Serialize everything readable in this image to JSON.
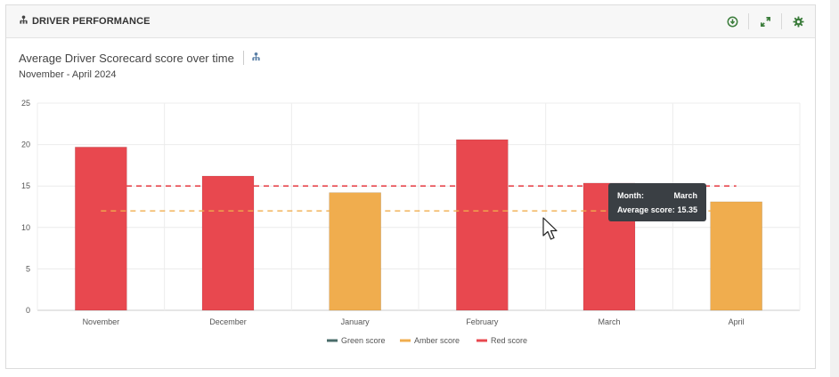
{
  "header": {
    "title": "DRIVER PERFORMANCE"
  },
  "icons": {
    "header": "user-tree-icon",
    "download": "download-icon",
    "expand": "expand-icon",
    "settings": "gear-icon",
    "drilldown": "user-tree-icon"
  },
  "colors": {
    "green": "#4a6c6a",
    "amber": "#f0ad4e",
    "red": "#e8484f",
    "accent": "#3c7d3c"
  },
  "chart_data": {
    "type": "bar",
    "title": "Average Driver Scorecard score over time",
    "subtitle": "November - April 2024",
    "categories": [
      "November",
      "December",
      "January",
      "February",
      "March",
      "April"
    ],
    "values": [
      19.7,
      16.2,
      14.2,
      20.6,
      15.35,
      13.1
    ],
    "bar_levels": [
      "red",
      "red",
      "amber",
      "red",
      "red",
      "amber"
    ],
    "ylim": [
      0,
      25
    ],
    "yticks": [
      0,
      5,
      10,
      15,
      20,
      25
    ],
    "thresholds": [
      {
        "name": "Red score",
        "value": 15,
        "color": "#e8484f"
      },
      {
        "name": "Amber score",
        "value": 12,
        "color": "#f0ad4e"
      }
    ],
    "legend": [
      {
        "name": "Green score",
        "color": "#4a6c6a"
      },
      {
        "name": "Amber score",
        "color": "#f0ad4e"
      },
      {
        "name": "Red score",
        "color": "#e8484f"
      }
    ],
    "legend_position": "bottom-center",
    "grid": true
  },
  "tooltip": {
    "month_label": "Month:",
    "month_value": "March",
    "score_label": "Average score:",
    "score_value": "15.35"
  }
}
